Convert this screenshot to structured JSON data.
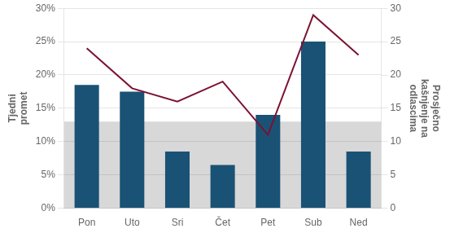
{
  "chart_data": {
    "type": "bar",
    "categories": [
      "Pon",
      "Uto",
      "Sri",
      "Čet",
      "Pet",
      "Sub",
      "Ned"
    ],
    "series": [
      {
        "type": "bar",
        "color": "#1a5276",
        "values": [
          0.185,
          0.175,
          0.085,
          0.065,
          0.14,
          0.25,
          0.085
        ]
      },
      {
        "type": "line",
        "color": "#7b1230",
        "axis": "y2",
        "values": [
          24,
          18,
          16,
          19,
          11,
          29,
          23
        ]
      }
    ],
    "ylabel": "Tjedni\npromet",
    "y2label": "Prosječno\nkašnjenje na\nodlascima",
    "ylim": [
      0,
      0.3
    ],
    "yticks": [
      {
        "value": 0.0,
        "label": "0%"
      },
      {
        "value": 0.05,
        "label": "5%"
      },
      {
        "value": 0.1,
        "label": "10%"
      },
      {
        "value": 0.15,
        "label": "15%"
      },
      {
        "value": 0.2,
        "label": "20%"
      },
      {
        "value": 0.25,
        "label": "25%"
      },
      {
        "value": 0.3,
        "label": "30%"
      }
    ],
    "y2lim": [
      0,
      30
    ],
    "y2ticks": [
      0,
      5,
      10,
      15,
      20,
      25,
      30
    ],
    "shade": {
      "ylim": [
        0,
        0.13
      ],
      "color": "#d8d8d8"
    },
    "grid": true
  }
}
